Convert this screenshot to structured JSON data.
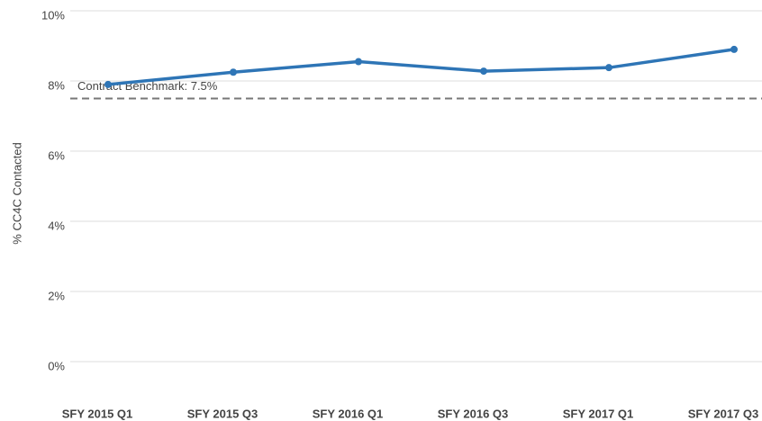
{
  "chart_data": {
    "type": "line",
    "y_label": "% CC4C Contacted",
    "categories": [
      "SFY 2015 Q1",
      "SFY 2015 Q3",
      "SFY 2016 Q1",
      "SFY 2016 Q3",
      "SFY 2017 Q1",
      "SFY 2017 Q3"
    ],
    "series": [
      {
        "name": "CC4C Contacted",
        "color": "#2e75b6",
        "values": [
          7.9,
          8.25,
          8.55,
          8.28,
          8.38,
          8.9
        ]
      }
    ],
    "benchmark": {
      "value": 7.5,
      "label": "Contract Benchmark: 7.5%",
      "color": "#777777"
    },
    "ylim": [
      0,
      10
    ],
    "yticks": [
      {
        "value": 0,
        "label": "0%"
      },
      {
        "value": 2,
        "label": "2%"
      },
      {
        "value": 4,
        "label": "4%"
      },
      {
        "value": 6,
        "label": "6%"
      },
      {
        "value": 8,
        "label": "8%"
      },
      {
        "value": 10,
        "label": "10%"
      }
    ],
    "grid": true
  }
}
